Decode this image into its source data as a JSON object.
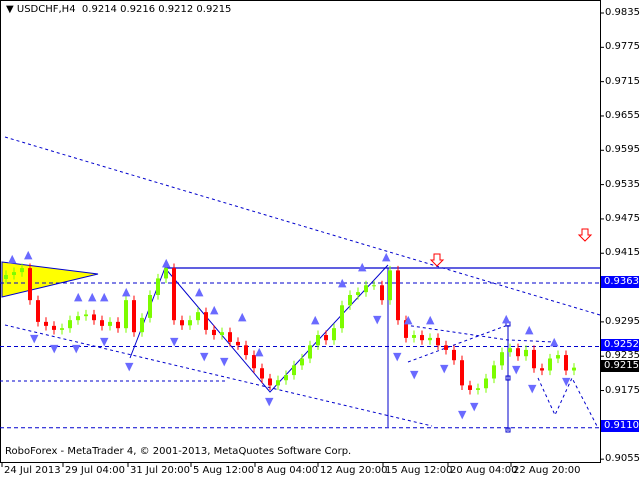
{
  "header": {
    "symbol": "USDCHF,H4",
    "ohlc": "0.9214 0.9216 0.9212 0.9215"
  },
  "copyright": "RoboForex - MetaTrader 4, © 2001-2013, MetaQuotes Software Corp.",
  "colors": {
    "bull": "#7CFC00",
    "bear": "#FF0000",
    "lines": "#0000CD",
    "triangle": "#FFFF00",
    "signal_arrow": "#FF0000"
  },
  "icons": {
    "menu": "triangle-down-icon",
    "signal": "down-arrow-icon"
  },
  "chart_data": {
    "type": "candlestick",
    "title": "USDCHF,H4",
    "ylim": [
      0.904,
      0.986
    ],
    "y_ticks": [
      "0.9835",
      "0.9775",
      "0.9715",
      "0.9655",
      "0.9595",
      "0.9535",
      "0.9475",
      "0.9415",
      "0.9295",
      "0.9235",
      "0.9175",
      "0.9055"
    ],
    "x_ticks": [
      "24 Jul 2013",
      "29 Jul 04:00",
      "31 Jul 20:00",
      "5 Aug 12:00",
      "8 Aug 04:00",
      "12 Aug 20:00",
      "15 Aug 12:00",
      "20 Aug 04:00",
      "22 Aug 20:00"
    ],
    "first_open": 0.937,
    "closes": [
      0.9377,
      0.9382,
      0.9389,
      0.9333,
      0.9295,
      0.9288,
      0.9281,
      0.9284,
      0.9298,
      0.9305,
      0.9308,
      0.9298,
      0.9288,
      0.9295,
      0.9284,
      0.9333,
      0.9277,
      0.9302,
      0.9342,
      0.9371,
      0.9389,
      0.9298,
      0.9289,
      0.9298,
      0.9312,
      0.9281,
      0.9272,
      0.9277,
      0.926,
      0.9254,
      0.9237,
      0.9214,
      0.9196,
      0.9184,
      0.9193,
      0.9202,
      0.9219,
      0.9231,
      0.9254,
      0.9272,
      0.9263,
      0.9284,
      0.9324,
      0.9342,
      0.9347,
      0.9359,
      0.9359,
      0.9333,
      0.9385,
      0.9298,
      0.9267,
      0.9272,
      0.9263,
      0.9267,
      0.9254,
      0.9246,
      0.9228,
      0.9184,
      0.9176,
      0.9179,
      0.9196,
      0.9219,
      0.9242,
      0.9249,
      0.9235,
      0.9246,
      0.9214,
      0.921,
      0.9231,
      0.9237,
      0.921,
      0.9215
    ],
    "levels": [
      {
        "label": "0.9363",
        "price": 0.9363,
        "style": "dashed"
      },
      {
        "label": "0.9252",
        "price": 0.9252,
        "style": "dashed"
      },
      {
        "label": "0.9110",
        "price": 0.911,
        "style": "dashed"
      }
    ],
    "current_price": "0.9215"
  }
}
